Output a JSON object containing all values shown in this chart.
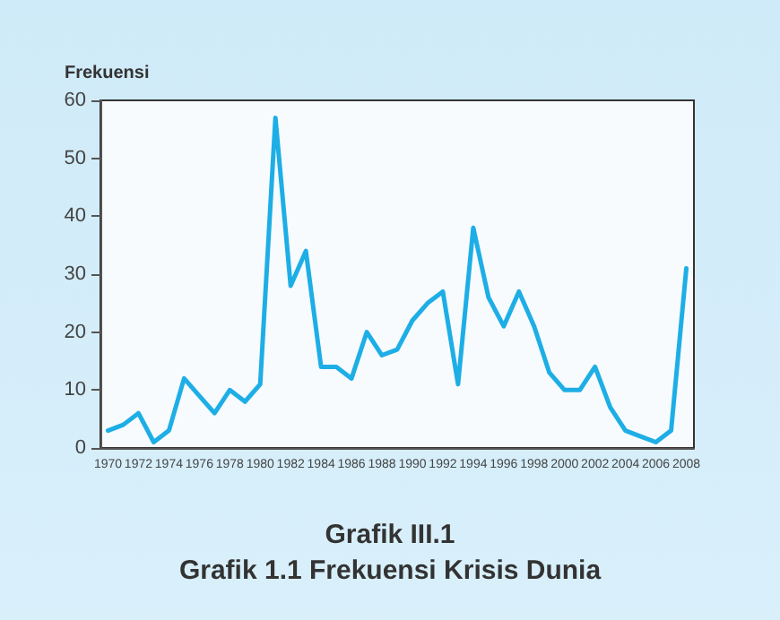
{
  "chart_data": {
    "type": "line",
    "title": "Grafik III.1",
    "subtitle": "Grafik 1.1 Frekuensi Krisis Dunia",
    "ylabel": "Frekuensi",
    "categories": [
      "1970",
      null,
      "1972",
      null,
      "1974",
      null,
      "1976",
      null,
      "1978",
      null,
      "1980",
      null,
      "1982",
      null,
      "1984",
      null,
      "1986",
      null,
      "1988",
      null,
      "1990",
      null,
      "1992",
      null,
      "1994",
      null,
      "1996",
      null,
      "1998",
      null,
      "2000",
      null,
      "2002",
      null,
      "2004",
      null,
      "2006",
      null,
      "2008"
    ],
    "series": [
      {
        "color": "#1eaee6",
        "values": [
          3,
          4,
          6,
          1,
          3,
          12,
          9,
          6,
          10,
          8,
          11,
          57,
          28,
          34,
          14,
          14,
          12,
          20,
          16,
          17,
          22,
          25,
          27,
          11,
          38,
          26,
          21,
          27,
          21,
          13,
          10,
          10,
          14,
          7,
          3,
          2,
          1,
          3,
          31
        ]
      }
    ],
    "ylim": [
      0,
      60
    ],
    "yticks": [
      0,
      10,
      20,
      30,
      40,
      50,
      60
    ],
    "grid": false,
    "marker": "none",
    "line_style": "solid"
  }
}
